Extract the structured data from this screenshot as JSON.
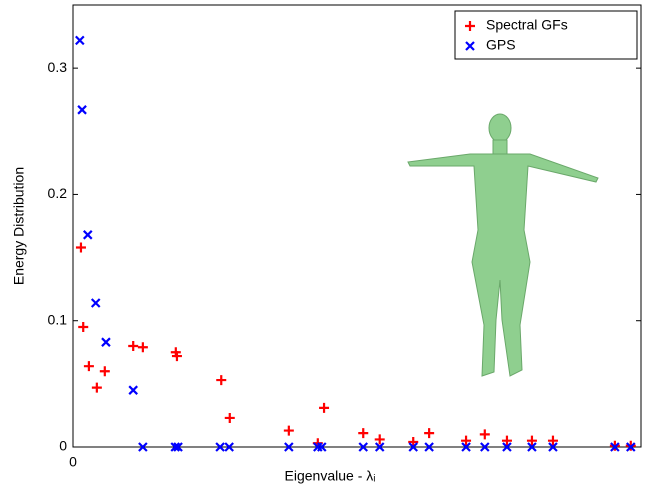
{
  "chart_data": {
    "type": "scatter",
    "x_label": "Eigenvalue - λᵢ",
    "y_label": "Energy Distribution",
    "xlim": [
      0,
      100
    ],
    "xticks": [
      0
    ],
    "ylim": [
      0,
      0.35
    ],
    "yticks": [
      0,
      0.1,
      0.2,
      0.3
    ],
    "legend": "upper right",
    "series": [
      {
        "name": "Spectral GFs",
        "color": "#ff0000",
        "marker": "plus",
        "x": [
          1.4,
          1.8,
          2.8,
          4.2,
          5.6,
          10.6,
          12.3,
          18.1,
          18.3,
          26.1,
          27.6,
          38.0,
          43.1,
          44.2,
          51.1,
          54.0,
          59.9,
          62.7,
          69.2,
          72.5,
          76.4,
          80.8,
          84.5,
          95.4,
          98.2
        ],
        "values": [
          0.158,
          0.095,
          0.064,
          0.047,
          0.06,
          0.08,
          0.079,
          0.075,
          0.072,
          0.053,
          0.023,
          0.013,
          0.003,
          0.031,
          0.011,
          0.006,
          0.004,
          0.011,
          0.005,
          0.01,
          0.005,
          0.005,
          0.005,
          0.001,
          0.001
        ]
      },
      {
        "name": "GPS",
        "color": "#0000ff",
        "marker": "cross",
        "x": [
          1.2,
          1.6,
          2.6,
          4.0,
          5.8,
          10.6,
          12.3,
          18.0,
          18.5,
          25.9,
          27.5,
          38.0,
          43.1,
          43.8,
          51.1,
          54.0,
          59.9,
          62.7,
          69.2,
          72.5,
          76.4,
          80.8,
          84.5,
          95.4,
          98.2
        ],
        "values": [
          0.322,
          0.267,
          0.168,
          0.114,
          0.083,
          0.045,
          0,
          0,
          0,
          0,
          0,
          0,
          0,
          0,
          0,
          0,
          0,
          0,
          0,
          0,
          0,
          0,
          0,
          0,
          0
        ]
      }
    ]
  }
}
